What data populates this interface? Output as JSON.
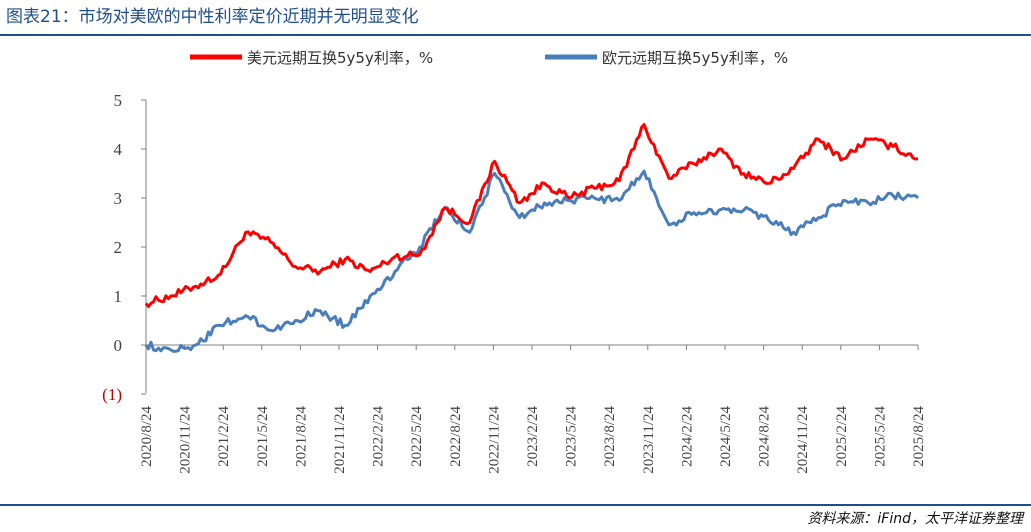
{
  "header": {
    "title": "图表21：市场对美欧的中性利率定价近期并无明显变化"
  },
  "footer": {
    "source": "资料来源：iFind，太平洋证券整理"
  },
  "colors": {
    "us": "#ff0000",
    "eu": "#4a7ebb",
    "title": "#1f4e8c",
    "negative_tick": "#c00000"
  },
  "chart_data": {
    "type": "line",
    "title": "",
    "xlabel": "",
    "ylabel": "",
    "ylim": [
      -1,
      5
    ],
    "y_ticks": [
      5,
      4,
      3,
      2,
      1,
      0,
      -1
    ],
    "y_tick_labels": [
      "5",
      "4",
      "3",
      "2",
      "1",
      "0",
      "(1)"
    ],
    "x_tick_labels": [
      "2020/8/24",
      "2020/11/24",
      "2021/2/24",
      "2021/5/24",
      "2021/8/24",
      "2021/11/24",
      "2022/2/24",
      "2022/5/24",
      "2022/8/24",
      "2022/11/24",
      "2023/2/24",
      "2023/5/24",
      "2023/8/24",
      "2023/11/24",
      "2024/2/24",
      "2024/5/24",
      "2024/8/24",
      "2024/11/24",
      "2025/2/24",
      "2025/5/24",
      "2025/8/24"
    ],
    "legend_position": "top",
    "series": [
      {
        "name": "美元远期互换5y5y利率，%",
        "color": "#ff0000",
        "values": [
          0.85,
          1.0,
          1.2,
          1.45,
          2.3,
          2.1,
          1.6,
          1.5,
          1.75,
          1.5,
          1.8,
          1.85,
          2.8,
          2.5,
          3.75,
          2.9,
          3.3,
          3.0,
          3.2,
          3.35,
          4.5,
          3.4,
          3.7,
          4.0,
          3.5,
          3.3,
          3.6,
          4.2,
          3.8,
          4.2,
          4.05,
          3.8
        ]
      },
      {
        "name": "欧元远期互换5y5y利率，%",
        "color": "#4a7ebb",
        "values": [
          0.0,
          -0.1,
          0.0,
          0.4,
          0.6,
          0.3,
          0.5,
          0.7,
          0.4,
          1.0,
          1.5,
          2.0,
          2.8,
          2.3,
          3.5,
          2.6,
          2.9,
          2.95,
          3.0,
          2.95,
          3.55,
          2.45,
          2.7,
          2.75,
          2.75,
          2.55,
          2.3,
          2.6,
          2.95,
          2.9,
          3.05,
          3.0
        ]
      }
    ]
  }
}
